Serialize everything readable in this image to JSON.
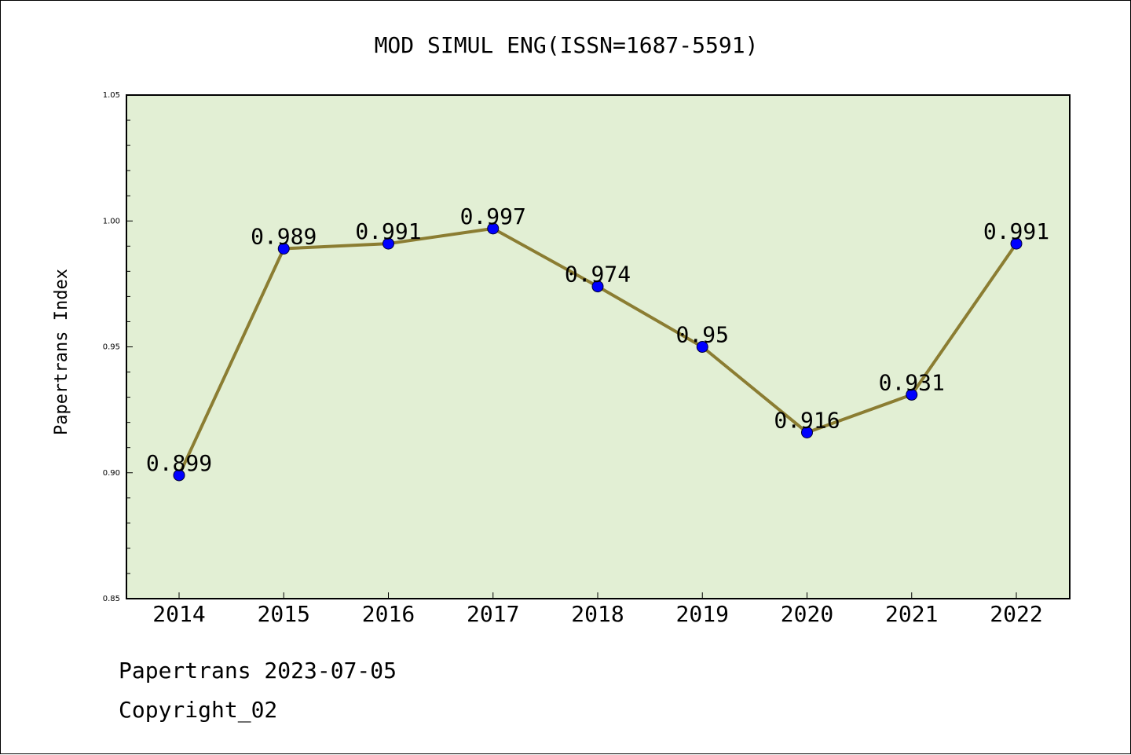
{
  "chart_data": {
    "type": "line",
    "title": "MOD SIMUL ENG(ISSN=1687-5591)",
    "xlabel": "",
    "ylabel": "Papertrans Index",
    "categories": [
      "2014",
      "2015",
      "2016",
      "2017",
      "2018",
      "2019",
      "2020",
      "2021",
      "2022"
    ],
    "series": [
      {
        "values": [
          0.899,
          0.989,
          0.991,
          0.997,
          0.974,
          0.95,
          0.916,
          0.931,
          0.991
        ],
        "data_labels": [
          "0.899",
          "0.989",
          "0.991",
          "0.997",
          "0.974",
          "0.95",
          "0.916",
          "0.931",
          "0.991"
        ],
        "line_color": "#8b7d32",
        "marker_color": "#0000ff"
      }
    ],
    "ylim": [
      0.85,
      1.05
    ],
    "yticks": [
      "0.85",
      "0.90",
      "0.95",
      "1.00",
      "1.05"
    ],
    "grid": false,
    "plot_background": "#e2efd4"
  },
  "footer": {
    "date_line": "Papertrans 2023-07-05",
    "copyright": "Copyright_02"
  }
}
